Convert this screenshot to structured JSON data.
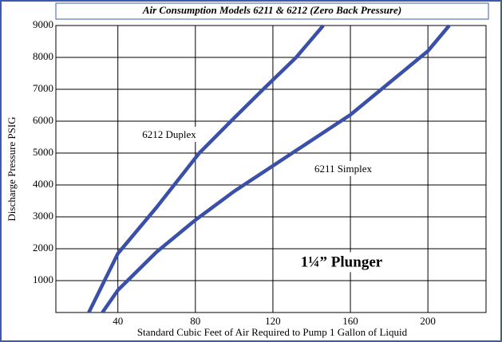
{
  "chart_data": {
    "type": "line",
    "title": "Air Consumption Models 6211 & 6212 (Zero Back Pressure)",
    "x_label": "Standard Cubic Feet of Air Required to Pump 1 Gallon of Liquid",
    "y_label": "Discharge Pressure PSIG",
    "annotations": [
      "6212 Duplex",
      "6211 Simplex",
      "1¼” Plunger"
    ],
    "xlim": [
      8,
      230
    ],
    "ylim": [
      0,
      9000
    ],
    "xticks": [
      40,
      80,
      120,
      160,
      200
    ],
    "yticks": [
      1000,
      2000,
      3000,
      4000,
      5000,
      6000,
      7000,
      8000,
      9000
    ],
    "grid": true,
    "series": [
      {
        "name": "6212 Duplex",
        "color": "#3a4fa8",
        "x": [
          25,
          40,
          60,
          82,
          100,
          115,
          132,
          146
        ],
        "values": [
          0,
          1850,
          3300,
          5000,
          6100,
          7000,
          8000,
          9000
        ]
      },
      {
        "name": "6211 Simplex",
        "color": "#3a4fa8",
        "x": [
          32,
          40,
          60,
          80,
          100,
          120,
          140,
          160,
          180,
          200,
          211
        ],
        "values": [
          0,
          700,
          1900,
          2900,
          3800,
          4600,
          5400,
          6200,
          7200,
          8200,
          9000
        ]
      }
    ]
  }
}
